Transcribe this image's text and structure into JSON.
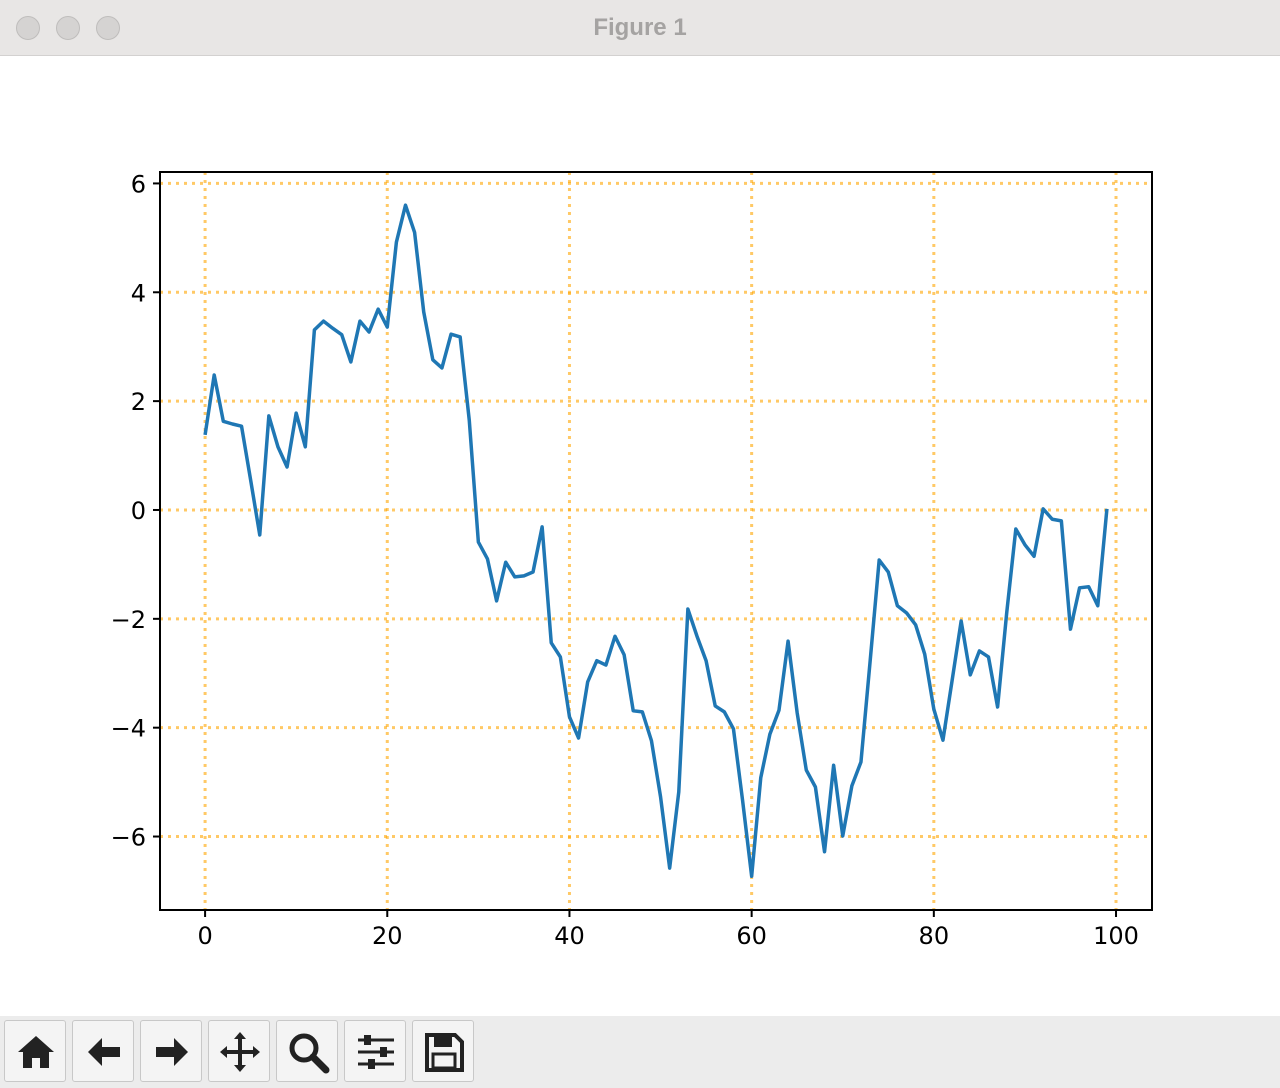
{
  "window": {
    "title": "Figure 1"
  },
  "chart_data": {
    "type": "line",
    "x": [
      0,
      1,
      2,
      3,
      4,
      5,
      6,
      7,
      8,
      9,
      10,
      11,
      12,
      13,
      14,
      15,
      16,
      17,
      18,
      19,
      20,
      21,
      22,
      23,
      24,
      25,
      26,
      27,
      28,
      29,
      30,
      31,
      32,
      33,
      34,
      35,
      36,
      37,
      38,
      39,
      40,
      41,
      42,
      43,
      44,
      45,
      46,
      47,
      48,
      49,
      50,
      51,
      52,
      53,
      54,
      55,
      56,
      57,
      58,
      59,
      60,
      61,
      62,
      63,
      64,
      65,
      66,
      67,
      68,
      69,
      70,
      71,
      72,
      73,
      74,
      75,
      76,
      77,
      78,
      79,
      80,
      81,
      82,
      83,
      84,
      85,
      86,
      87,
      88,
      89,
      90,
      91,
      92,
      93,
      94,
      95,
      96,
      97,
      98,
      99
    ],
    "values": [
      1.38,
      2.48,
      1.63,
      1.58,
      1.54,
      0.55,
      -0.46,
      1.73,
      1.16,
      0.79,
      1.78,
      1.16,
      3.31,
      3.47,
      3.34,
      3.22,
      2.72,
      3.47,
      3.27,
      3.69,
      3.36,
      4.92,
      5.6,
      5.1,
      3.64,
      2.76,
      2.61,
      3.23,
      3.18,
      1.65,
      -0.59,
      -0.9,
      -1.67,
      -0.96,
      -1.23,
      -1.21,
      -1.14,
      -0.31,
      -2.44,
      -2.7,
      -3.8,
      -4.19,
      -3.16,
      -2.77,
      -2.85,
      -2.32,
      -2.66,
      -3.69,
      -3.71,
      -4.24,
      -5.27,
      -6.58,
      -5.18,
      -1.82,
      -2.32,
      -2.77,
      -3.6,
      -3.71,
      -4.02,
      -5.33,
      -6.73,
      -4.92,
      -4.12,
      -3.68,
      -2.41,
      -3.73,
      -4.78,
      -5.09,
      -6.28,
      -4.69,
      -5.99,
      -5.07,
      -4.63,
      -2.79,
      -0.92,
      -1.14,
      -1.76,
      -1.89,
      -2.11,
      -2.65,
      -3.66,
      -4.23,
      -3.14,
      -2.04,
      -3.03,
      -2.59,
      -2.7,
      -3.62,
      -1.89,
      -0.35,
      -0.64,
      -0.85,
      0.02,
      -0.17,
      -0.2,
      -2.19,
      -1.43,
      -1.41,
      -1.76,
      0.02
    ],
    "color": "#1f77b4",
    "xlim": [
      -4.95,
      103.95
    ],
    "ylim": [
      -7.35,
      6.21
    ],
    "xticks": [
      0,
      20,
      40,
      60,
      80,
      100
    ],
    "yticks": [
      {
        "value": -6,
        "label": "−6"
      },
      {
        "value": -4,
        "label": "−4"
      },
      {
        "value": -2,
        "label": "−2"
      },
      0,
      2,
      4,
      6
    ],
    "grid": true,
    "grid_color": "#ffa500",
    "grid_style": "dotted"
  }
}
